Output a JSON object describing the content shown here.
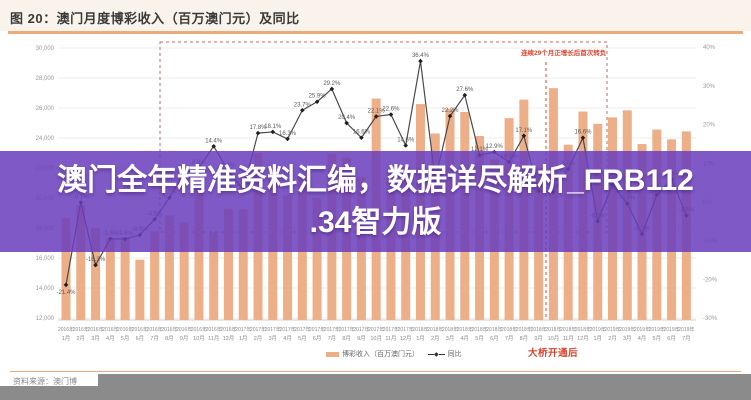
{
  "title": "图 20：澳门月度博彩收入（百万澳门元）及同比",
  "overlay": {
    "lines": [
      "澳门全年精准资料汇编，数据详尽解析_FRB112",
      ".34智力版"
    ]
  },
  "annotations": {
    "streak_note": "连续29个月正增长后首次转负",
    "bridge_note": "大桥开通后"
  },
  "legend": {
    "bars_label": "博彩收入（百万澳门元）",
    "line_label": "同比",
    "line_marker": "◆"
  },
  "footer": {
    "source": "资料来源：澳门博"
  },
  "colors": {
    "bar": "#ecaf88",
    "line": "#4a4a4a",
    "marker": "#1f1f1f",
    "grid": "#ececec",
    "axis_text": "#999999",
    "point_label": "#5a5a5a",
    "box_stroke": "#bb6e63",
    "bridge_line": "#d9442f",
    "accent_orange": "#edaa7d",
    "highlight_red": "#d9442f",
    "overlay_purple": "rgba(106,63,189,0.86)",
    "gray_band": "#8b8b8b",
    "baseline": "#cfcfcf"
  },
  "chart_data": {
    "type": "bar+line",
    "title": "澳门月度博彩收入（百万澳门元）及同比",
    "categories": [
      "2016年1月",
      "2016年2月",
      "2016年3月",
      "2016年4月",
      "2016年5月",
      "2016年6月",
      "2016年7月",
      "2016年8月",
      "2016年9月",
      "2016年10月",
      "2016年11月",
      "2016年12月",
      "2017年1月",
      "2017年2月",
      "2017年3月",
      "2017年4月",
      "2017年5月",
      "2017年6月",
      "2017年7月",
      "2017年8月",
      "2017年9月",
      "2017年10月",
      "2017年11月",
      "2017年12月",
      "2018年1月",
      "2018年2月",
      "2018年3月",
      "2018年4月",
      "2018年5月",
      "2018年6月",
      "2018年7月",
      "2018年8月",
      "2018年9月",
      "2018年10月",
      "2018年11月",
      "2018年12月",
      "2019年1月",
      "2019年2月",
      "2019年3月",
      "2019年4月",
      "2019年5月",
      "2019年6月",
      "2019年7月"
    ],
    "series": [
      {
        "name": "博彩收入（百万澳门元）",
        "type": "bar",
        "values": [
          18674,
          19518,
          17980,
          17340,
          17401,
          15884,
          17771,
          18837,
          18365,
          21811,
          17705,
          19283,
          19253,
          22992,
          21234,
          20166,
          21525,
          19998,
          22960,
          22680,
          21414,
          26631,
          21706,
          22098,
          26261,
          24303,
          25948,
          25732,
          24130,
          22578,
          25325,
          26558,
          22014,
          27323,
          23551,
          25766,
          24948,
          25372,
          25844,
          23596,
          24564,
          23910,
          24439
        ]
      },
      {
        "name": "同比",
        "type": "line",
        "unit": "%",
        "values": [
          -21.4,
          -0.1,
          -16.3,
          -9.5,
          -9.6,
          -8.5,
          -4.5,
          1.1,
          7.4,
          8.8,
          14.4,
          8.0,
          3.1,
          17.8,
          18.1,
          16.3,
          23.7,
          25.9,
          29.2,
          20.4,
          16.6,
          22.1,
          22.6,
          14.6,
          36.4,
          5.7,
          22.2,
          27.6,
          12.1,
          12.9,
          10.3,
          17.1,
          2.8,
          2.6,
          8.5,
          16.6,
          -5.0,
          4.4,
          -0.4,
          -8.3,
          1.8,
          5.9,
          -3.5
        ]
      }
    ],
    "left_axis": {
      "label": "百万澳门元",
      "min": 12000,
      "max": 30000,
      "ticks": [
        30000,
        28000,
        26000,
        24000,
        22000,
        20000,
        18000,
        16000,
        14000,
        12000
      ]
    },
    "right_axis": {
      "label": "同比",
      "min": -30,
      "max": 40,
      "ticks": [
        40,
        30,
        20,
        10,
        0,
        -10,
        -20,
        -30
      ]
    },
    "grid": true,
    "legend_position": "bottom",
    "highlight_box_months": [
      "2016年8月",
      "2019年1月"
    ],
    "bridge_marker_month": "2018年10月"
  }
}
